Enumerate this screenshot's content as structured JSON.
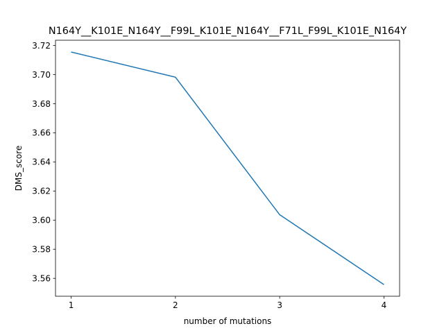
{
  "chart_data": {
    "type": "line",
    "title": "N164Y__K101E_N164Y__F99L_K101E_N164Y__F71L_F99L_K101E_N164Y",
    "xlabel": "number of mutations",
    "ylabel": "DMS_score",
    "x": [
      1,
      2,
      3,
      4
    ],
    "x_ticks": [
      "1",
      "2",
      "3",
      "4"
    ],
    "y_ticks": [
      "3.56",
      "3.58",
      "3.60",
      "3.62",
      "3.64",
      "3.66",
      "3.68",
      "3.70",
      "3.72"
    ],
    "xlim": [
      0.85,
      4.15
    ],
    "ylim": [
      3.5477,
      3.7236
    ],
    "grid": false,
    "series": [
      {
        "values": [
          3.7155,
          3.6982,
          3.6037,
          3.5557
        ],
        "color": "#1f77b4"
      }
    ]
  }
}
